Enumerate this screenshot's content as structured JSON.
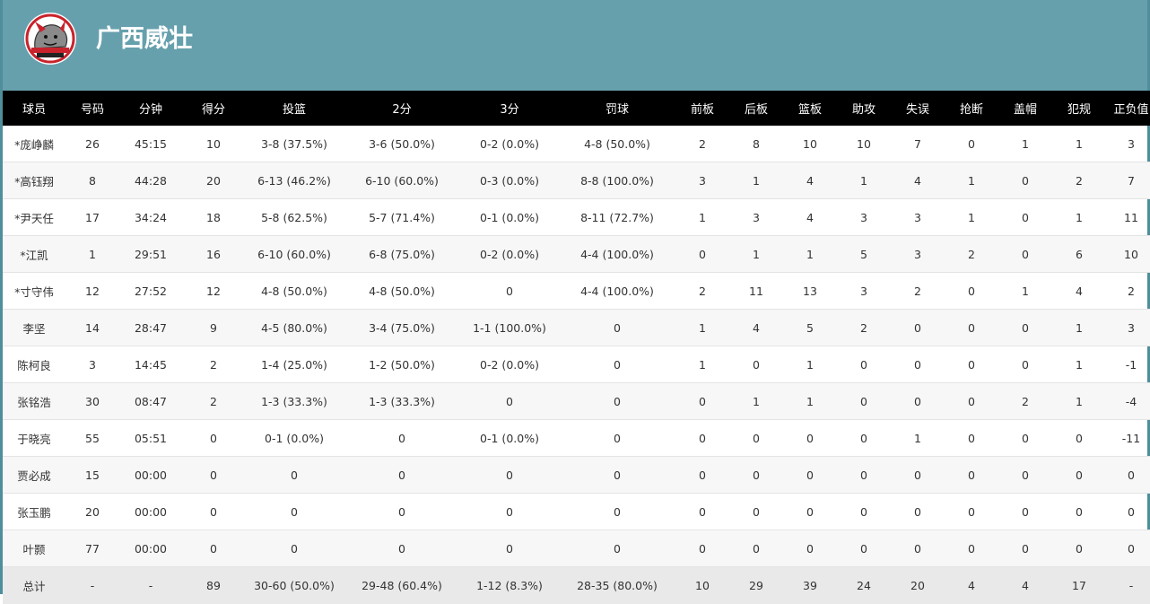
{
  "team": {
    "name": "广西威壮",
    "logo_text": "GUANGXI RHINO 广西威壮"
  },
  "columns": [
    "球员",
    "号码",
    "分钟",
    "得分",
    "投篮",
    "2分",
    "3分",
    "罚球",
    "前板",
    "后板",
    "篮板",
    "助攻",
    "失误",
    "抢断",
    "盖帽",
    "犯规",
    "正负值"
  ],
  "players": [
    [
      "*庞峥麟",
      "26",
      "45:15",
      "10",
      "3-8 (37.5%)",
      "3-6 (50.0%)",
      "0-2 (0.0%)",
      "4-8 (50.0%)",
      "2",
      "8",
      "10",
      "10",
      "7",
      "0",
      "1",
      "1",
      "3"
    ],
    [
      "*高钰翔",
      "8",
      "44:28",
      "20",
      "6-13 (46.2%)",
      "6-10 (60.0%)",
      "0-3 (0.0%)",
      "8-8 (100.0%)",
      "3",
      "1",
      "4",
      "1",
      "4",
      "1",
      "0",
      "2",
      "7"
    ],
    [
      "*尹天任",
      "17",
      "34:24",
      "18",
      "5-8 (62.5%)",
      "5-7 (71.4%)",
      "0-1 (0.0%)",
      "8-11 (72.7%)",
      "1",
      "3",
      "4",
      "3",
      "3",
      "1",
      "0",
      "1",
      "11"
    ],
    [
      "*江凯",
      "1",
      "29:51",
      "16",
      "6-10 (60.0%)",
      "6-8 (75.0%)",
      "0-2 (0.0%)",
      "4-4 (100.0%)",
      "0",
      "1",
      "1",
      "5",
      "3",
      "2",
      "0",
      "6",
      "10"
    ],
    [
      "*寸守伟",
      "12",
      "27:52",
      "12",
      "4-8 (50.0%)",
      "4-8 (50.0%)",
      "0",
      "4-4 (100.0%)",
      "2",
      "11",
      "13",
      "3",
      "2",
      "0",
      "1",
      "4",
      "2"
    ],
    [
      "李坚",
      "14",
      "28:47",
      "9",
      "4-5 (80.0%)",
      "3-4 (75.0%)",
      "1-1 (100.0%)",
      "0",
      "1",
      "4",
      "5",
      "2",
      "0",
      "0",
      "0",
      "1",
      "3"
    ],
    [
      "陈柯良",
      "3",
      "14:45",
      "2",
      "1-4 (25.0%)",
      "1-2 (50.0%)",
      "0-2 (0.0%)",
      "0",
      "1",
      "0",
      "1",
      "0",
      "0",
      "0",
      "0",
      "1",
      "-1"
    ],
    [
      "张铭浩",
      "30",
      "08:47",
      "2",
      "1-3 (33.3%)",
      "1-3 (33.3%)",
      "0",
      "0",
      "0",
      "1",
      "1",
      "0",
      "0",
      "0",
      "2",
      "1",
      "-4"
    ],
    [
      "于晓亮",
      "55",
      "05:51",
      "0",
      "0-1 (0.0%)",
      "0",
      "0-1 (0.0%)",
      "0",
      "0",
      "0",
      "0",
      "0",
      "1",
      "0",
      "0",
      "0",
      "-11"
    ],
    [
      "贾必成",
      "15",
      "00:00",
      "0",
      "0",
      "0",
      "0",
      "0",
      "0",
      "0",
      "0",
      "0",
      "0",
      "0",
      "0",
      "0",
      "0"
    ],
    [
      "张玉鹏",
      "20",
      "00:00",
      "0",
      "0",
      "0",
      "0",
      "0",
      "0",
      "0",
      "0",
      "0",
      "0",
      "0",
      "0",
      "0",
      "0"
    ],
    [
      "叶颢",
      "77",
      "00:00",
      "0",
      "0",
      "0",
      "0",
      "0",
      "0",
      "0",
      "0",
      "0",
      "0",
      "0",
      "0",
      "0",
      "0"
    ]
  ],
  "total": [
    "总计",
    "-",
    "-",
    "89",
    "30-60 (50.0%)",
    "29-48 (60.4%)",
    "1-12 (8.3%)",
    "28-35 (80.0%)",
    "10",
    "29",
    "39",
    "24",
    "20",
    "4",
    "4",
    "17",
    "-"
  ],
  "colors": {
    "header_bg": "#67a0ad",
    "table_header_bg": "#000000",
    "total_row_bg": "#e9e9e9",
    "logo_red": "#c8232c"
  }
}
